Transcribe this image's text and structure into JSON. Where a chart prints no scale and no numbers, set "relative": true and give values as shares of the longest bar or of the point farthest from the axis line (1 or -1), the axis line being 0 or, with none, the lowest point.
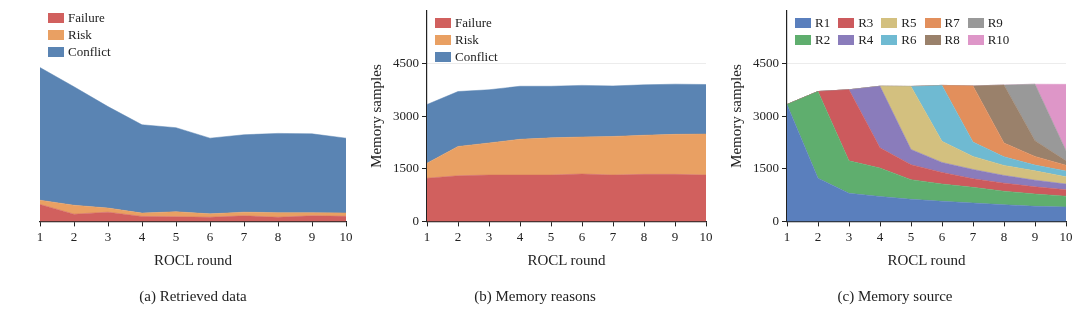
{
  "chart_data": [
    {
      "type": "area",
      "title": "(a) Retrieved data",
      "xlabel": "ROCL round",
      "stacked": true,
      "relative": true,
      "legend": "top left",
      "x": [
        1,
        2,
        3,
        4,
        5,
        6,
        7,
        8,
        9,
        10
      ],
      "xlim": [
        1,
        10
      ],
      "xticks": [
        1,
        2,
        3,
        4,
        5,
        6,
        7,
        8,
        9,
        10
      ],
      "series": [
        {
          "name": "Failure",
          "color": "#d1605e",
          "values": [
            0.11,
            0.047,
            0.06,
            0.032,
            0.03,
            0.027,
            0.036,
            0.027,
            0.036,
            0.033
          ]
        },
        {
          "name": "Risk",
          "color": "#e9a063",
          "values": [
            0.028,
            0.058,
            0.027,
            0.022,
            0.033,
            0.022,
            0.024,
            0.03,
            0.021,
            0.022
          ]
        },
        {
          "name": "Conflict",
          "color": "#5a84b3",
          "values": [
            0.862,
            0.77,
            0.659,
            0.574,
            0.546,
            0.492,
            0.503,
            0.515,
            0.512,
            0.486
          ]
        }
      ]
    },
    {
      "type": "area",
      "title": "(b) Memory reasons",
      "xlabel": "ROCL round",
      "ylabel": "Memory samples",
      "stacked": true,
      "grid": "y",
      "legend": "top left",
      "x": [
        1,
        2,
        3,
        4,
        5,
        6,
        7,
        8,
        9,
        10
      ],
      "xlim": [
        1,
        10
      ],
      "xticks": [
        1,
        2,
        3,
        4,
        5,
        6,
        7,
        8,
        9,
        10
      ],
      "ylim": [
        0,
        6000
      ],
      "yticks": [
        0,
        1500,
        3000,
        4500
      ],
      "series": [
        {
          "name": "Failure",
          "color": "#d1605e",
          "values": [
            1230,
            1300,
            1320,
            1320,
            1320,
            1350,
            1320,
            1340,
            1340,
            1320
          ]
        },
        {
          "name": "Risk",
          "color": "#e9a063",
          "values": [
            430,
            835,
            915,
            1020,
            1060,
            1055,
            1100,
            1115,
            1140,
            1170
          ]
        },
        {
          "name": "Conflict",
          "color": "#5a84b3",
          "values": [
            1670,
            1565,
            1515,
            1510,
            1470,
            1470,
            1440,
            1435,
            1430,
            1410
          ]
        }
      ]
    },
    {
      "type": "area",
      "title": "(c) Memory source",
      "xlabel": "ROCL round",
      "ylabel": "Memory samples",
      "stacked": true,
      "grid": "y",
      "legend": "top left",
      "x": [
        1,
        2,
        3,
        4,
        5,
        6,
        7,
        8,
        9,
        10
      ],
      "xlim": [
        1,
        10
      ],
      "xticks": [
        1,
        2,
        3,
        4,
        5,
        6,
        7,
        8,
        9,
        10
      ],
      "ylim": [
        0,
        6000
      ],
      "yticks": [
        0,
        1500,
        3000,
        4500
      ],
      "series": [
        {
          "name": "R1",
          "color": "#5a7fbd",
          "values": [
            3330,
            1230,
            800,
            710,
            630,
            575,
            525,
            475,
            430,
            410
          ]
        },
        {
          "name": "R2",
          "color": "#5fae6e",
          "values": [
            0,
            2470,
            925,
            810,
            560,
            490,
            445,
            385,
            350,
            310
          ]
        },
        {
          "name": "R3",
          "color": "#cc5a5d",
          "values": [
            0,
            0,
            2025,
            575,
            425,
            330,
            245,
            230,
            205,
            180
          ]
        },
        {
          "name": "R4",
          "color": "#8a7cbb",
          "values": [
            0,
            0,
            0,
            1755,
            435,
            285,
            265,
            220,
            190,
            165
          ]
        },
        {
          "name": "R5",
          "color": "#d3c07f",
          "values": [
            0,
            0,
            0,
            0,
            1795,
            600,
            370,
            285,
            265,
            205
          ]
        },
        {
          "name": "R6",
          "color": "#6fbad2",
          "values": [
            0,
            0,
            0,
            0,
            0,
            1595,
            410,
            245,
            165,
            165
          ]
        },
        {
          "name": "R7",
          "color": "#e28f5c",
          "values": [
            0,
            0,
            0,
            0,
            0,
            0,
            1600,
            395,
            245,
            165
          ]
        },
        {
          "name": "R8",
          "color": "#9a816b",
          "values": [
            0,
            0,
            0,
            0,
            0,
            0,
            0,
            1650,
            450,
            125
          ]
        },
        {
          "name": "R9",
          "color": "#999999",
          "values": [
            0,
            0,
            0,
            0,
            0,
            0,
            0,
            0,
            1610,
            290
          ]
        },
        {
          "name": "R10",
          "color": "#de96c8",
          "values": [
            0,
            0,
            0,
            0,
            0,
            0,
            0,
            0,
            0,
            1890
          ]
        }
      ]
    }
  ]
}
